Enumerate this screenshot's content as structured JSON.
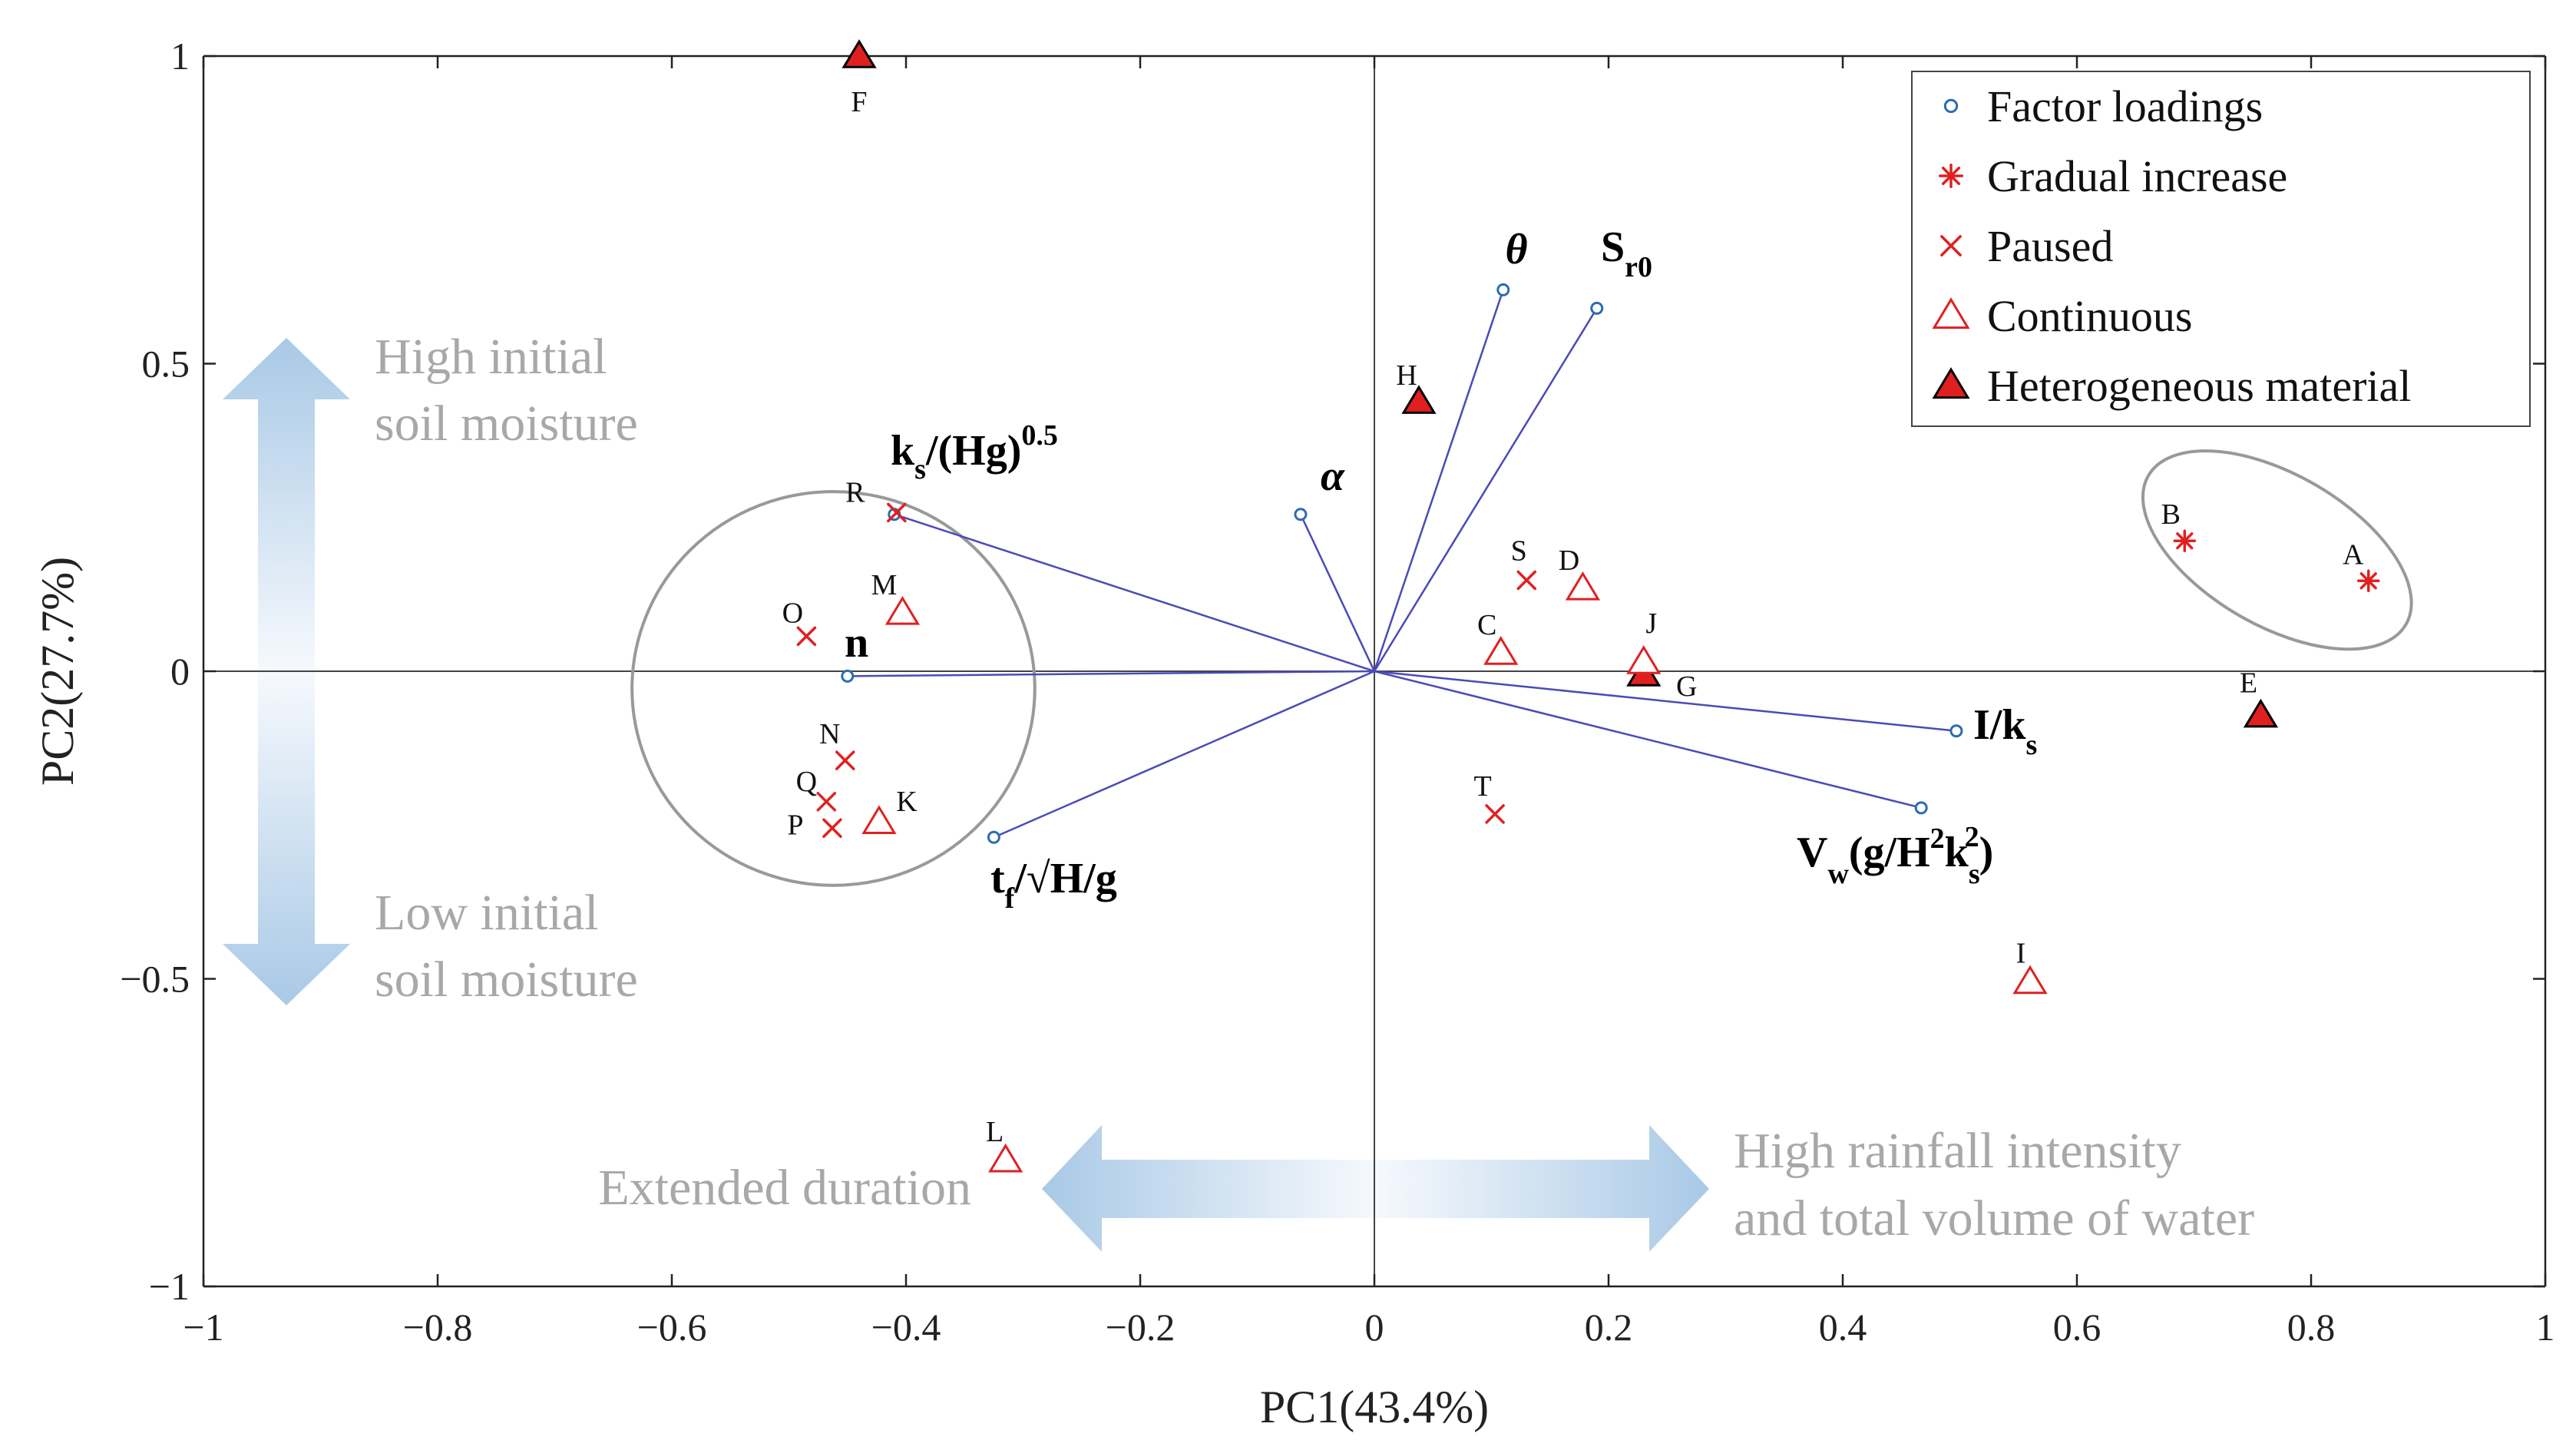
{
  "chart_data": {
    "type": "scatter",
    "title": "",
    "xlabel": "PC1(43.4%)",
    "ylabel": "PC2(27.7%)",
    "xlim": [
      -1,
      1
    ],
    "ylim": [
      -1,
      1
    ],
    "xticks": [
      -1,
      -0.8,
      -0.6,
      -0.4,
      -0.2,
      0,
      0.2,
      0.4,
      0.6,
      0.8,
      1
    ],
    "xtick_labels": [
      "−1",
      "−0.8",
      "−0.6",
      "−0.4",
      "−0.2",
      "0",
      "0.2",
      "0.4",
      "0.6",
      "0.8",
      "1"
    ],
    "yticks": [
      -1,
      -0.5,
      0,
      0.5,
      1
    ],
    "ytick_labels": [
      "−1",
      "−0.5",
      "0",
      "0.5",
      "1"
    ],
    "grid": false,
    "legend_position": "top-right",
    "colors": {
      "loading": "#2b6cb0",
      "loading_line": "#4a4ab8",
      "sample": "#e02020",
      "axis": "#222222",
      "annotation": "#a8a8a8",
      "arrow": "#a9c9e6"
    },
    "series": [
      {
        "name": "Factor loadings",
        "marker": "circle"
      },
      {
        "name": "Gradual increase",
        "marker": "asterisk"
      },
      {
        "name": "Paused",
        "marker": "cross"
      },
      {
        "name": "Continuous",
        "marker": "triangle"
      },
      {
        "name": "Heterogeneous material",
        "marker": "triangle-filled"
      }
    ],
    "loadings": [
      {
        "name": "θ",
        "x": 0.11,
        "y": 0.62
      },
      {
        "name": "Sr0",
        "x": 0.19,
        "y": 0.59
      },
      {
        "name": "α",
        "x": -0.063,
        "y": 0.255
      },
      {
        "name": "ks/(Hg)0.5",
        "x": -0.41,
        "y": 0.255
      },
      {
        "name": "n",
        "x": -0.45,
        "y": -0.008
      },
      {
        "name": "tf/√H/g",
        "x": -0.325,
        "y": -0.27
      },
      {
        "name": "I/ks",
        "x": 0.497,
        "y": -0.097
      },
      {
        "name": "Vw(g/H2ks2)",
        "x": 0.467,
        "y": -0.222
      }
    ],
    "loading_labels": {
      "theta": "θ",
      "sr0_main": "S",
      "sr0_sub": "r0",
      "alpha": "α",
      "ks_main": "k",
      "ks_sub": "s",
      "ks_mid": "/(Hg)",
      "ks_sup": "0.5",
      "n": "n",
      "tf_main": "t",
      "tf_sub": "f",
      "tf_rest": "/√H/g",
      "iks_main": "I/k",
      "iks_sub": "s",
      "vw_main": "V",
      "vw_sub": "w",
      "vw_mid": "(g/H",
      "vw_sup1": "2",
      "vw_k": "k",
      "vw_sub2": "s",
      "vw_sup2": "2",
      "vw_end": ")"
    },
    "samples": [
      {
        "label": "A",
        "group": "Gradual increase",
        "x": 0.849,
        "y": 0.147
      },
      {
        "label": "B",
        "group": "Gradual increase",
        "x": 0.692,
        "y": 0.212
      },
      {
        "label": "C",
        "group": "Continuous",
        "x": 0.108,
        "y": 0.03
      },
      {
        "label": "D",
        "group": "Continuous",
        "x": 0.178,
        "y": 0.135
      },
      {
        "label": "E",
        "group": "Heterogeneous material",
        "x": 0.757,
        "y": -0.072
      },
      {
        "label": "F",
        "group": "Heterogeneous material",
        "x": -0.44,
        "y": 1.0
      },
      {
        "label": "G",
        "group": "Heterogeneous material",
        "x": 0.23,
        "y": -0.005
      },
      {
        "label": "H",
        "group": "Heterogeneous material",
        "x": 0.038,
        "y": 0.438
      },
      {
        "label": "I",
        "group": "Continuous",
        "x": 0.56,
        "y": -0.505
      },
      {
        "label": "J",
        "group": "Continuous",
        "x": 0.23,
        "y": 0.015
      },
      {
        "label": "K",
        "group": "Continuous",
        "x": -0.423,
        "y": -0.245
      },
      {
        "label": "L",
        "group": "Continuous",
        "x": -0.315,
        "y": -0.795
      },
      {
        "label": "M",
        "group": "Continuous",
        "x": -0.403,
        "y": 0.095
      },
      {
        "label": "N",
        "group": "Paused",
        "x": -0.452,
        "y": -0.145
      },
      {
        "label": "O",
        "group": "Paused",
        "x": -0.485,
        "y": 0.057
      },
      {
        "label": "P",
        "group": "Paused",
        "x": -0.463,
        "y": -0.255
      },
      {
        "label": "Q",
        "group": "Paused",
        "x": -0.468,
        "y": -0.212
      },
      {
        "label": "R",
        "group": "Paused",
        "x": -0.408,
        "y": 0.258
      },
      {
        "label": "S",
        "group": "Paused",
        "x": 0.13,
        "y": 0.148
      },
      {
        "label": "T",
        "group": "Paused",
        "x": 0.103,
        "y": -0.232
      }
    ],
    "clusters": [
      {
        "name": "left-group",
        "cx": -0.462,
        "cy": -0.028,
        "rx": 0.172,
        "ry": 0.32
      },
      {
        "name": "right-group",
        "cx": 0.771,
        "cy": 0.197,
        "rx": 0.127,
        "ry": 0.123
      }
    ],
    "annotations": {
      "vertical_top_line1": "High initial",
      "vertical_top_line2": "soil moisture",
      "vertical_bottom_line1": "Low initial",
      "vertical_bottom_line2": "soil moisture",
      "horizontal_left": "Extended duration",
      "horizontal_right_line1": "High rainfall intensity",
      "horizontal_right_line2": "and total volume of water"
    }
  }
}
